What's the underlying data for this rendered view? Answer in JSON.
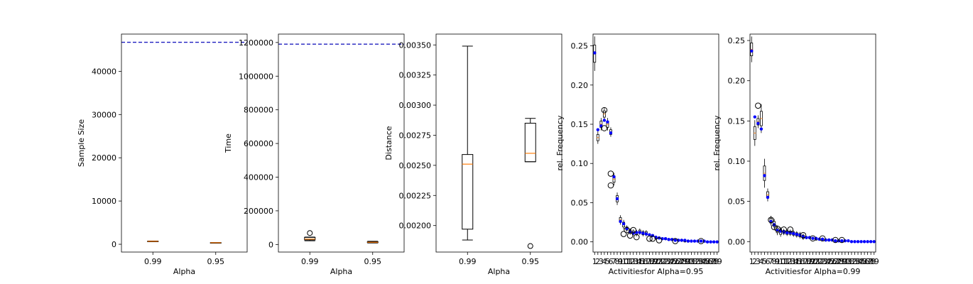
{
  "chart_data": [
    {
      "type": "box",
      "xlabel": "Alpha",
      "ylabel": "Sample Size",
      "categories": [
        "0.99",
        "0.95"
      ],
      "yticks": [
        0,
        10000,
        20000,
        30000,
        40000
      ],
      "ylim": [
        -1800,
        48600
      ],
      "reference_line": {
        "value": 46700,
        "color": "#1f1fbf",
        "style": "dashed"
      },
      "boxes": [
        {
          "label": "0.99",
          "whislo": 630,
          "q1": 660,
          "med": 690,
          "q3": 720,
          "whishi": 760,
          "fliers": []
        },
        {
          "label": "0.95",
          "whislo": 320,
          "q1": 340,
          "med": 360,
          "q3": 380,
          "whishi": 400,
          "fliers": []
        }
      ]
    },
    {
      "type": "box",
      "xlabel": "Alpha",
      "ylabel": "Time",
      "categories": [
        "0.99",
        "0.95"
      ],
      "yticks": [
        0,
        200000,
        400000,
        600000,
        800000,
        1000000,
        1200000
      ],
      "ylim": [
        -45000,
        1250000
      ],
      "reference_line": {
        "value": 1190000,
        "color": "#1f1fbf",
        "style": "dashed"
      },
      "boxes": [
        {
          "label": "0.99",
          "whislo": 22000,
          "q1": 27000,
          "med": 32000,
          "q3": 42000,
          "whishi": 44000,
          "fliers": [
            68000
          ]
        },
        {
          "label": "0.95",
          "whislo": 9000,
          "q1": 11000,
          "med": 13000,
          "q3": 16000,
          "whishi": 19000,
          "fliers": []
        }
      ]
    },
    {
      "type": "box",
      "xlabel": "Alpha",
      "ylabel": "Distance",
      "categories": [
        "0.99",
        "0.95"
      ],
      "yticks": [
        0.002,
        0.00225,
        0.0025,
        0.00275,
        0.003,
        0.00325,
        0.0035
      ],
      "ytick_labels": [
        "0.00200",
        "0.00225",
        "0.00250",
        "0.00275",
        "0.00300",
        "0.00325",
        "0.00350"
      ],
      "ylim": [
        0.00178,
        0.00359
      ],
      "boxes": [
        {
          "label": "0.99",
          "whislo": 0.00188,
          "q1": 0.00197,
          "med": 0.00251,
          "q3": 0.00259,
          "whishi": 0.00349,
          "fliers": []
        },
        {
          "label": "0.95",
          "whislo": 0.00253,
          "q1": 0.00253,
          "med": 0.0026,
          "q3": 0.00285,
          "whishi": 0.00289,
          "fliers": [
            0.00183
          ]
        }
      ]
    },
    {
      "type": "box",
      "xlabel": "Activitiesfor Alpha=0.95",
      "ylabel": "rel. Frequency",
      "categories": [
        "1",
        "2",
        "3",
        "4",
        "5",
        "6",
        "7",
        "8",
        "9",
        "10",
        "11",
        "12",
        "13",
        "14",
        "15",
        "16",
        "17",
        "18",
        "19",
        "20",
        "21",
        "22",
        "23",
        "24",
        "25",
        "26",
        "27",
        "28",
        "29",
        "30",
        "31",
        "32",
        "33",
        "34",
        "35",
        "36",
        "37",
        "38",
        "39"
      ],
      "yticks": [
        0,
        0.05,
        0.1,
        0.15,
        0.2,
        0.25
      ],
      "ytick_labels": [
        "0.00",
        "0.05",
        "0.10",
        "0.15",
        "0.20",
        "0.25"
      ],
      "ylim": [
        -0.013,
        0.265
      ],
      "medians": [
        0.24,
        0.133,
        0.15,
        0.163,
        0.15,
        0.14,
        0.08,
        0.055,
        0.028,
        0.022,
        0.017,
        0.013,
        0.012,
        0.011,
        0.013,
        0.011,
        0.011,
        0.009,
        0.008,
        0.005,
        0.005,
        0.004,
        0.004,
        0.003,
        0.003,
        0.002,
        0.002,
        0.002,
        0.001,
        0.001,
        0.001,
        0.001,
        0.001,
        0.001,
        0,
        0,
        0,
        0,
        0
      ],
      "mean_points": [
        0.241,
        0.143,
        0.148,
        0.155,
        0.153,
        0.139,
        0.083,
        0.055,
        0.026,
        0.023,
        0.017,
        0.013,
        0.011,
        0.012,
        0.012,
        0.011,
        0.01,
        0.009,
        0.008,
        0.006,
        0.005,
        0.004,
        0.004,
        0.003,
        0.003,
        0.002,
        0.002,
        0.002,
        0.002,
        0.001,
        0.001,
        0.001,
        0.001,
        0.001,
        0.001,
        0,
        0,
        0,
        0
      ],
      "box_halfheights": [
        0.011,
        0.004,
        0.004,
        0.004,
        0.004,
        0.003,
        0.004,
        0.004,
        0.003,
        0.003,
        0.002,
        0.002,
        0.002,
        0.002,
        0.002,
        0.002,
        0.002,
        0.001,
        0.001,
        0.001,
        0.001,
        0.001,
        0.001,
        0.001,
        0.001,
        0.001,
        0.001,
        0.001,
        0.001,
        0.001,
        0,
        0,
        0,
        0,
        0,
        0,
        0,
        0,
        0
      ],
      "fliers": [
        [
          4,
          0.145
        ],
        [
          4,
          0.168
        ],
        [
          6,
          0.087
        ],
        [
          6,
          0.072
        ],
        [
          10,
          0.01
        ],
        [
          11,
          0.015
        ],
        [
          12,
          0.008
        ],
        [
          13,
          0.015
        ],
        [
          14,
          0.006
        ],
        [
          18,
          0.004
        ],
        [
          19,
          0.004
        ],
        [
          21,
          0.002
        ],
        [
          26,
          0.001
        ],
        [
          34,
          0.001
        ]
      ],
      "mean_color": "#0000ff"
    },
    {
      "type": "box",
      "xlabel": "Activitiesfor Alpha=0.99",
      "ylabel": "rel. Frequency",
      "categories": [
        "1",
        "2",
        "3",
        "4",
        "5",
        "6",
        "7",
        "8",
        "9",
        "10",
        "11",
        "12",
        "13",
        "14",
        "15",
        "16",
        "17",
        "18",
        "19",
        "20",
        "21",
        "22",
        "23",
        "24",
        "25",
        "26",
        "27",
        "28",
        "29",
        "30",
        "31",
        "32",
        "33",
        "34",
        "35",
        "36",
        "37",
        "38",
        "39"
      ],
      "yticks": [
        0,
        0.05,
        0.1,
        0.15,
        0.2,
        0.25
      ],
      "ytick_labels": [
        "0.00",
        "0.05",
        "0.10",
        "0.15",
        "0.20",
        "0.25"
      ],
      "ylim": [
        -0.013,
        0.258
      ],
      "medians": [
        0.239,
        0.135,
        0.149,
        0.153,
        0.085,
        0.058,
        0.026,
        0.022,
        0.014,
        0.012,
        0.012,
        0.011,
        0.011,
        0.01,
        0.009,
        0.008,
        0.006,
        0.005,
        0.005,
        0.004,
        0.003,
        0.003,
        0.003,
        0.002,
        0.002,
        0.002,
        0.001,
        0.001,
        0.001,
        0.001,
        0.001,
        0,
        0,
        0,
        0,
        0,
        0,
        0,
        0
      ],
      "mean_points": [
        0.237,
        0.155,
        0.147,
        0.14,
        0.082,
        0.055,
        0.025,
        0.021,
        0.014,
        0.013,
        0.012,
        0.011,
        0.011,
        0.01,
        0.009,
        0.008,
        0.006,
        0.005,
        0.005,
        0.004,
        0.004,
        0.003,
        0.003,
        0.002,
        0.002,
        0.002,
        0.001,
        0.001,
        0.001,
        0.001,
        0.001,
        0,
        0,
        0,
        0,
        0,
        0,
        0,
        0
      ],
      "box_halfheights": [
        0.008,
        0.008,
        0.004,
        0.009,
        0.009,
        0.004,
        0.003,
        0.003,
        0.003,
        0.003,
        0.002,
        0.002,
        0.002,
        0.002,
        0.002,
        0.002,
        0.002,
        0.001,
        0.001,
        0.001,
        0.001,
        0.001,
        0.001,
        0.001,
        0.001,
        0.001,
        0.001,
        0.001,
        0.001,
        0,
        0,
        0,
        0,
        0,
        0,
        0,
        0,
        0,
        0
      ],
      "fliers": [
        [
          3,
          0.169
        ],
        [
          7,
          0.027
        ],
        [
          8,
          0.018
        ],
        [
          9,
          0.016
        ],
        [
          11,
          0.015
        ],
        [
          13,
          0.015
        ],
        [
          17,
          0.008
        ],
        [
          20,
          0.004
        ],
        [
          23,
          0.004
        ],
        [
          27,
          0.002
        ],
        [
          29,
          0.002
        ]
      ],
      "mean_color": "#0000ff"
    }
  ]
}
